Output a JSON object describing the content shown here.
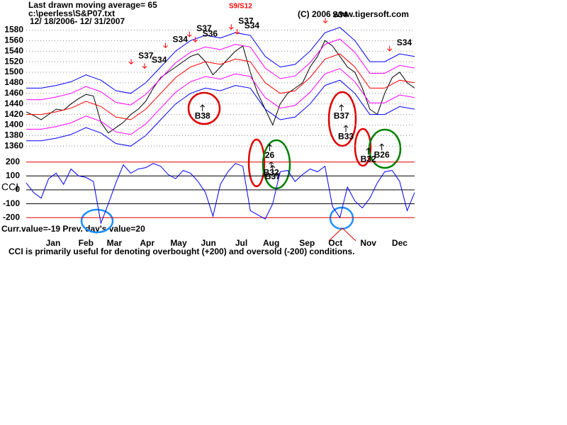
{
  "header": {
    "moving_average": "Last drawn moving average= 65",
    "file": "c:\\peerless\\S&P07.txt",
    "dates": "12/ 18/2006- 12/ 31/2007",
    "signal": "S9/S12",
    "copyright": "(C) 2006  www.tigersoft.com"
  },
  "footer": {
    "current": "Curr.value=-19 Prev. day's value=20",
    "note": "CCI is primarily useful for denoting overbought (+200) and oversold (-200) conditions."
  },
  "chart_data": [
    {
      "type": "line",
      "xlim": [
        0,
        260
      ],
      "ylim": [
        1355,
        1590
      ],
      "yticks": [
        1360,
        1380,
        1400,
        1420,
        1440,
        1460,
        1480,
        1500,
        1520,
        1540,
        1560,
        1580
      ],
      "grid": true,
      "series": [
        {
          "color": "#000000",
          "x": [
            0,
            5,
            10,
            15,
            20,
            25,
            30,
            35,
            40,
            45,
            50,
            55,
            60,
            65,
            70,
            75,
            80,
            85,
            90,
            95,
            100,
            105,
            110,
            115,
            120,
            125,
            130,
            135,
            140,
            145,
            150,
            155,
            160,
            165,
            170,
            175,
            180,
            185,
            190,
            195,
            200,
            205,
            210,
            215,
            220,
            225,
            230,
            235,
            240,
            245,
            250,
            255,
            260
          ],
          "values": [
            1425,
            1418,
            1410,
            1420,
            1430,
            1428,
            1440,
            1450,
            1458,
            1455,
            1405,
            1385,
            1395,
            1405,
            1420,
            1430,
            1445,
            1470,
            1490,
            1500,
            1510,
            1520,
            1530,
            1535,
            1520,
            1495,
            1510,
            1525,
            1540,
            1550,
            1500,
            1460,
            1430,
            1400,
            1440,
            1460,
            1470,
            1480,
            1510,
            1530,
            1560,
            1550,
            1530,
            1510,
            1500,
            1470,
            1430,
            1420,
            1460,
            1490,
            1500,
            1480,
            1470
          ]
        },
        {
          "color": "#0000ff",
          "x": [
            0,
            10,
            20,
            30,
            40,
            50,
            60,
            70,
            80,
            90,
            100,
            110,
            120,
            130,
            140,
            150,
            160,
            170,
            180,
            190,
            200,
            210,
            220,
            230,
            240,
            250,
            260
          ],
          "values": [
            1470,
            1470,
            1475,
            1482,
            1495,
            1485,
            1465,
            1460,
            1480,
            1510,
            1540,
            1560,
            1570,
            1565,
            1575,
            1570,
            1530,
            1510,
            1515,
            1540,
            1575,
            1585,
            1560,
            1520,
            1520,
            1535,
            1530
          ]
        },
        {
          "color": "#ff00ff",
          "x": [
            0,
            10,
            20,
            30,
            40,
            50,
            60,
            70,
            80,
            90,
            100,
            110,
            120,
            130,
            140,
            150,
            160,
            170,
            180,
            190,
            200,
            210,
            220,
            230,
            240,
            250,
            260
          ],
          "values": [
            1448,
            1448,
            1453,
            1460,
            1473,
            1463,
            1443,
            1438,
            1458,
            1488,
            1518,
            1538,
            1548,
            1543,
            1553,
            1548,
            1508,
            1488,
            1493,
            1518,
            1553,
            1563,
            1538,
            1498,
            1498,
            1513,
            1508
          ]
        },
        {
          "color": "#ff0000",
          "x": [
            0,
            10,
            20,
            30,
            40,
            50,
            60,
            70,
            80,
            90,
            100,
            110,
            120,
            130,
            140,
            150,
            160,
            170,
            180,
            190,
            200,
            210,
            220,
            230,
            240,
            250,
            260
          ],
          "values": [
            1420,
            1420,
            1425,
            1432,
            1445,
            1435,
            1415,
            1410,
            1430,
            1460,
            1490,
            1510,
            1520,
            1515,
            1525,
            1520,
            1480,
            1460,
            1465,
            1490,
            1525,
            1535,
            1510,
            1470,
            1470,
            1485,
            1480
          ]
        },
        {
          "color": "#ff00ff",
          "x": [
            0,
            10,
            20,
            30,
            40,
            50,
            60,
            70,
            80,
            90,
            100,
            110,
            120,
            130,
            140,
            150,
            160,
            170,
            180,
            190,
            200,
            210,
            220,
            230,
            240,
            250,
            260
          ],
          "values": [
            1392,
            1392,
            1397,
            1404,
            1417,
            1407,
            1387,
            1382,
            1402,
            1432,
            1462,
            1482,
            1492,
            1487,
            1497,
            1492,
            1452,
            1432,
            1437,
            1462,
            1497,
            1507,
            1482,
            1442,
            1442,
            1457,
            1452
          ]
        },
        {
          "color": "#0000ff",
          "x": [
            0,
            10,
            20,
            30,
            40,
            50,
            60,
            70,
            80,
            90,
            100,
            110,
            120,
            130,
            140,
            150,
            160,
            170,
            180,
            190,
            200,
            210,
            220,
            230,
            240,
            250,
            260
          ],
          "values": [
            1370,
            1370,
            1375,
            1382,
            1395,
            1385,
            1365,
            1360,
            1380,
            1410,
            1440,
            1460,
            1470,
            1465,
            1475,
            1470,
            1430,
            1410,
            1415,
            1440,
            1475,
            1485,
            1460,
            1420,
            1420,
            1435,
            1430
          ]
        }
      ],
      "signals": [
        {
          "label": "S37",
          "x": 75,
          "y": 1525,
          "color": "#ff0000",
          "arrow": "down"
        },
        {
          "label": "S34",
          "x": 84,
          "y": 1517,
          "color": "#ff0000",
          "arrow": "down"
        },
        {
          "label": "S34",
          "x": 98,
          "y": 1556,
          "color": "#ff0000",
          "arrow": "down"
        },
        {
          "label": "S37",
          "x": 114,
          "y": 1577,
          "color": "#ff0000",
          "arrow": "down"
        },
        {
          "label": "S36",
          "x": 118,
          "y": 1567,
          "color": "#ff0000",
          "arrow": "down"
        },
        {
          "label": "S37",
          "x": 142,
          "y": 1591,
          "color": "#ff0000",
          "arrow": "down"
        },
        {
          "label": "S34",
          "x": 146,
          "y": 1582,
          "color": "#ff0000",
          "arrow": "down"
        },
        {
          "label": "S34",
          "x": 205,
          "y": 1603,
          "color": "#ff0000",
          "arrow": "down"
        },
        {
          "label": "S34",
          "x": 248,
          "y": 1550,
          "color": "#ff0000",
          "arrow": "down"
        },
        {
          "label": "B38",
          "x": 118,
          "y": 1426,
          "color": "#000000",
          "arrow": "up"
        },
        {
          "label": "B37",
          "x": 211,
          "y": 1426,
          "color": "#000000",
          "arrow": "up"
        },
        {
          "label": "B33",
          "x": 214,
          "y": 1387,
          "color": "#000000",
          "arrow": "up"
        },
        {
          "label": "26",
          "x": 163,
          "y": 1351,
          "color": "#000000",
          "arrow": "up"
        },
        {
          "label": "B32",
          "x": 164,
          "y": 1318,
          "color": "#000000",
          "arrow": "up"
        },
        {
          "label": "B37",
          "x": 165,
          "y": 1311,
          "color": "#000000",
          "arrow": "up"
        },
        {
          "label": "B32",
          "x": 229,
          "y": 1344,
          "color": "#000000",
          "arrow": "up"
        },
        {
          "label": "B26",
          "x": 238,
          "y": 1352,
          "color": "#000000",
          "arrow": "up"
        }
      ]
    },
    {
      "type": "line",
      "ylabel": "CCI",
      "xlim": [
        0,
        260
      ],
      "ylim": [
        -250,
        250
      ],
      "yticks": [
        -200,
        -100,
        0,
        100,
        200
      ],
      "grid": true,
      "grid_color": "#000000",
      "threshold_color": "#dd0000",
      "xticks": [
        {
          "value": 18,
          "label": "Jan"
        },
        {
          "value": 40,
          "label": "Feb"
        },
        {
          "value": 59,
          "label": "Mar"
        },
        {
          "value": 81,
          "label": "Apr"
        },
        {
          "value": 102,
          "label": "May"
        },
        {
          "value": 122,
          "label": "Jun"
        },
        {
          "value": 144,
          "label": "Jul"
        },
        {
          "value": 164,
          "label": "Aug"
        },
        {
          "value": 188,
          "label": "Sep"
        },
        {
          "value": 207,
          "label": "Oct"
        },
        {
          "value": 229,
          "label": "Nov"
        },
        {
          "value": 250,
          "label": "Dec"
        }
      ],
      "series": [
        {
          "color": "#0000ff",
          "x": [
            0,
            5,
            10,
            15,
            20,
            25,
            30,
            35,
            40,
            45,
            50,
            55,
            60,
            65,
            70,
            75,
            80,
            85,
            90,
            95,
            100,
            105,
            110,
            115,
            120,
            125,
            130,
            135,
            140,
            145,
            150,
            155,
            160,
            165,
            170,
            175,
            180,
            185,
            190,
            195,
            200,
            205,
            210,
            215,
            220,
            225,
            230,
            235,
            240,
            245,
            250,
            255,
            260
          ],
          "values": [
            50,
            -20,
            -60,
            80,
            120,
            40,
            150,
            100,
            90,
            60,
            -240,
            -100,
            50,
            180,
            120,
            150,
            160,
            190,
            170,
            110,
            80,
            140,
            120,
            60,
            -20,
            -190,
            40,
            130,
            190,
            170,
            -150,
            -180,
            -210,
            -100,
            130,
            140,
            60,
            110,
            150,
            130,
            170,
            -120,
            -200,
            20,
            -80,
            -130,
            -60,
            50,
            130,
            140,
            60,
            -150,
            -19
          ]
        }
      ]
    }
  ]
}
